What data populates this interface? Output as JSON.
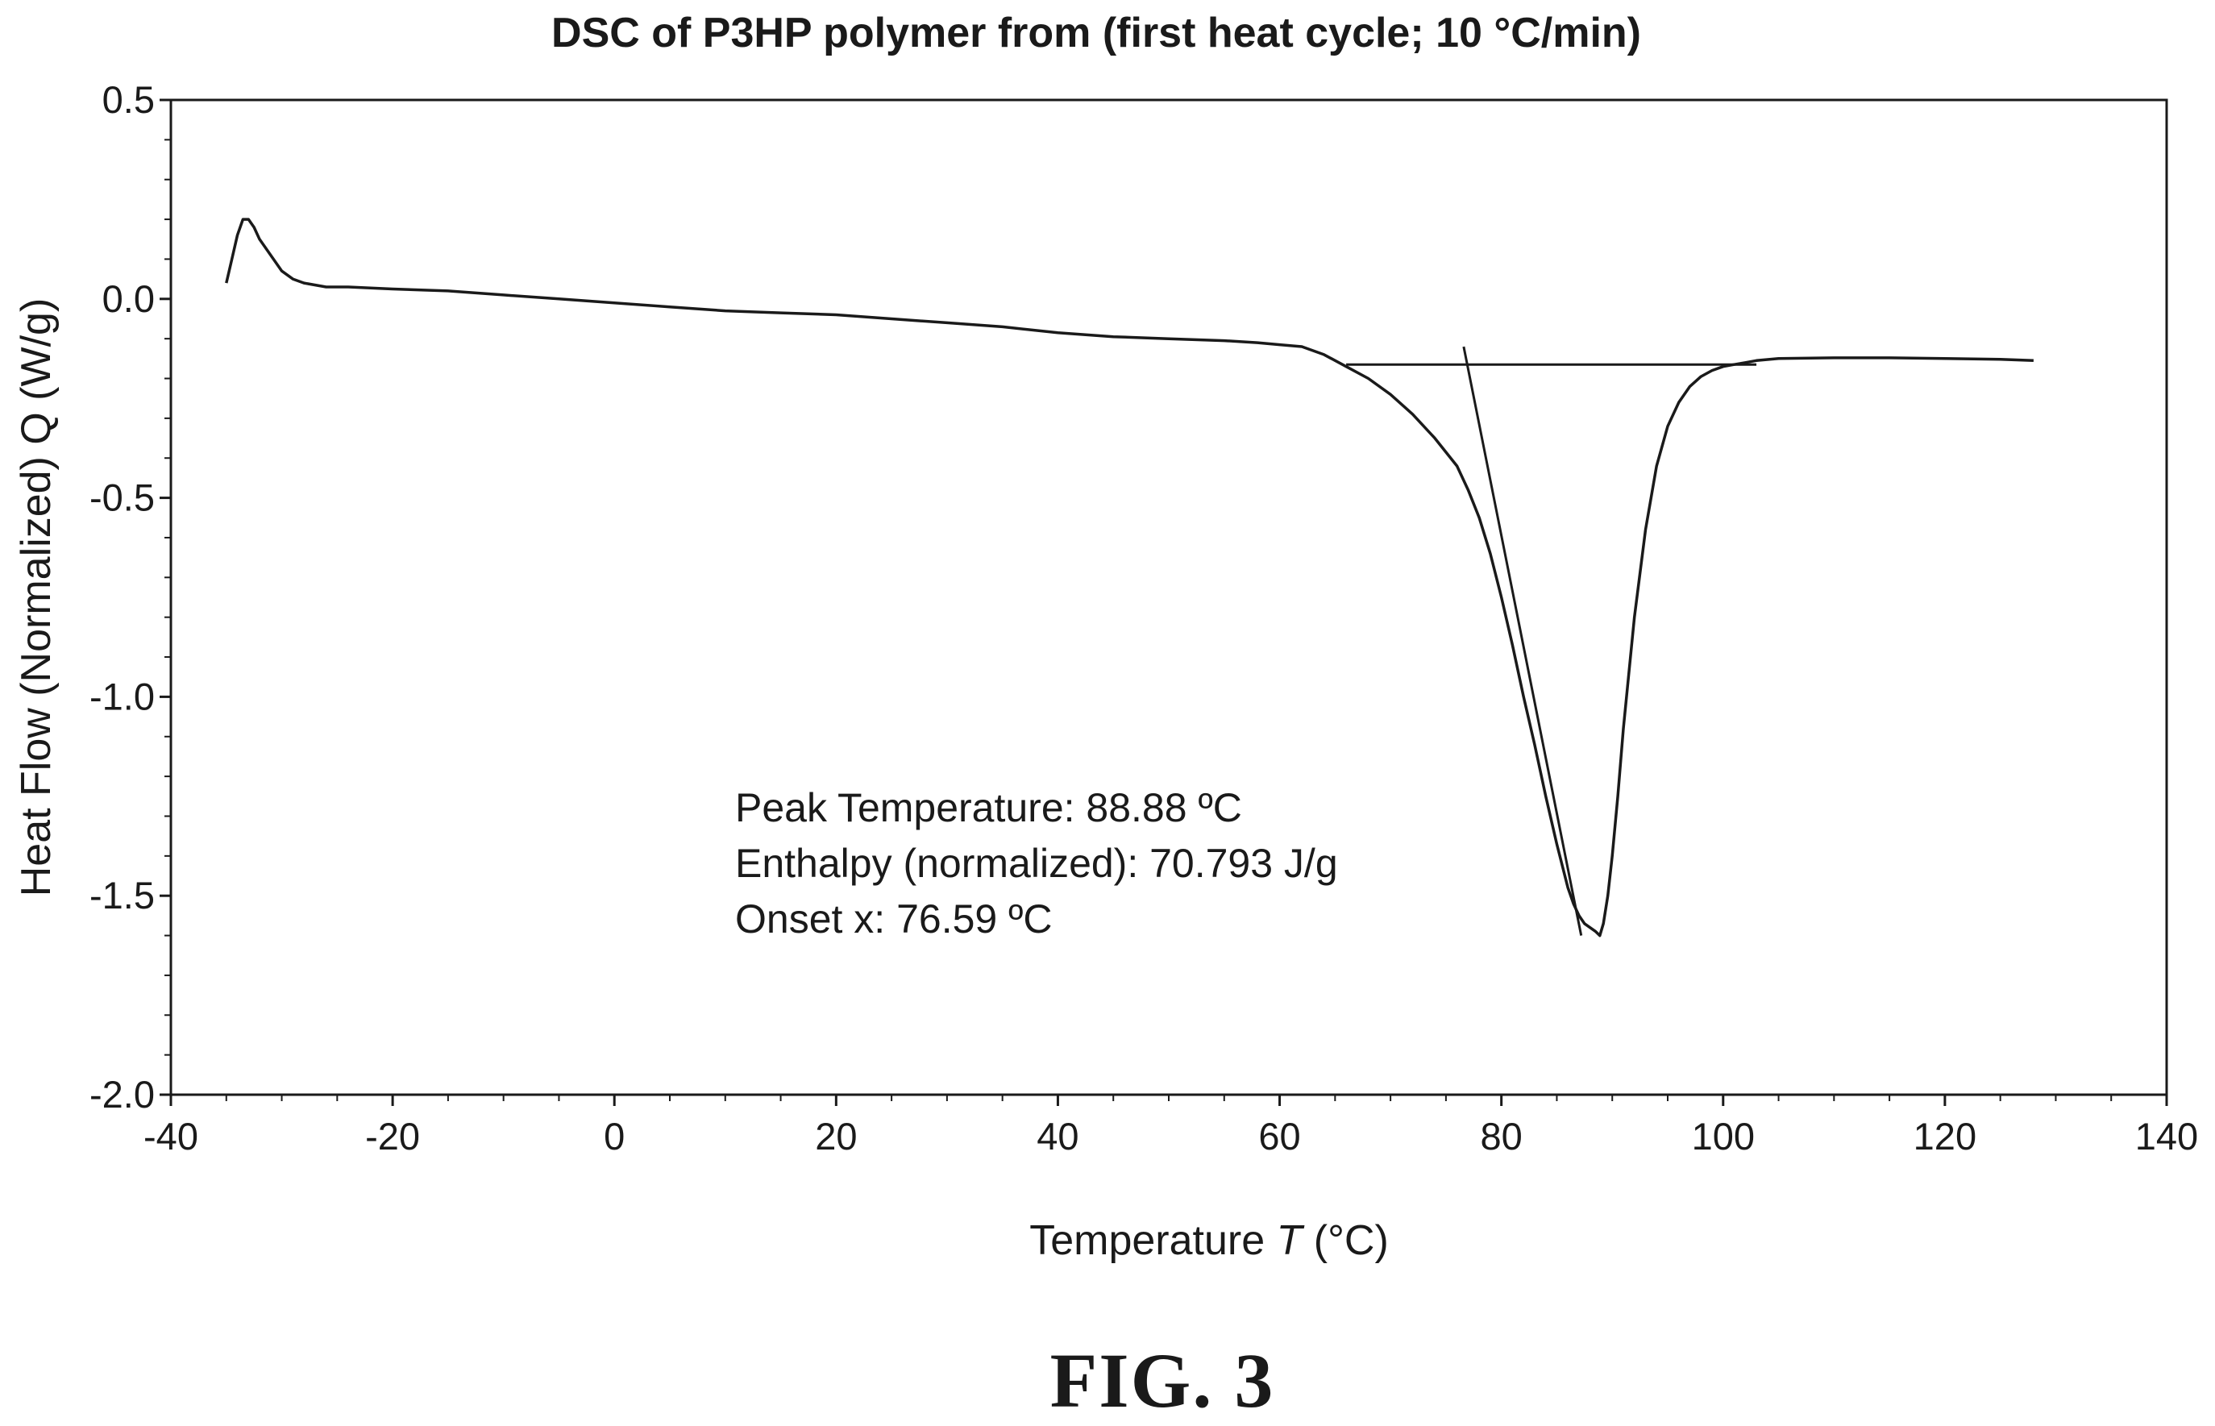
{
  "chart_data": {
    "type": "line",
    "title": "DSC of P3HP polymer from (first heat cycle; 10 °C/min)",
    "xlabel_text": "Temperature ",
    "xlabel_symbol": "T",
    "xlabel_unit": " (°C)",
    "ylabel": "Heat Flow (Normalized) Q (W/g)",
    "xlim": [
      -40,
      140
    ],
    "ylim": [
      -2.0,
      0.5
    ],
    "x_ticks": [
      -40,
      -20,
      0,
      20,
      40,
      60,
      80,
      100,
      120,
      140
    ],
    "y_ticks": [
      0.5,
      0.0,
      -0.5,
      -1.0,
      -1.5,
      -2.0
    ],
    "x_tick_labels": [
      "-40",
      "-20",
      "0",
      "20",
      "40",
      "60",
      "80",
      "100",
      "120",
      "140"
    ],
    "y_tick_labels": [
      "0.5",
      "0.0",
      "-0.5",
      "-1.0",
      "-1.5",
      "-2.0"
    ],
    "grid": false,
    "series": [
      {
        "x": [
          -35,
          -34.5,
          -34,
          -33.5,
          -33,
          -32.5,
          -32,
          -31,
          -30,
          -29,
          -28,
          -26,
          -24,
          -20,
          -15,
          -10,
          -5,
          0,
          5,
          10,
          15,
          20,
          25,
          30,
          35,
          40,
          45,
          50,
          55,
          58,
          60,
          62,
          64,
          66,
          68,
          70,
          72,
          74,
          76,
          77,
          78,
          79,
          80,
          81,
          82,
          83,
          84,
          85,
          86,
          86.5,
          87,
          87.5,
          88,
          88.5,
          88.88,
          89.2,
          89.6,
          90,
          90.5,
          91,
          92,
          93,
          94,
          95,
          96,
          97,
          98,
          99,
          100,
          101,
          102,
          103,
          105,
          110,
          115,
          120,
          125,
          128
        ],
        "y": [
          0.04,
          0.1,
          0.16,
          0.2,
          0.2,
          0.18,
          0.15,
          0.11,
          0.07,
          0.05,
          0.04,
          0.03,
          0.03,
          0.025,
          0.02,
          0.01,
          0.0,
          -0.01,
          -0.02,
          -0.03,
          -0.035,
          -0.04,
          -0.05,
          -0.06,
          -0.07,
          -0.085,
          -0.095,
          -0.1,
          -0.105,
          -0.11,
          -0.115,
          -0.12,
          -0.14,
          -0.17,
          -0.2,
          -0.24,
          -0.29,
          -0.35,
          -0.42,
          -0.48,
          -0.55,
          -0.64,
          -0.75,
          -0.87,
          -1.0,
          -1.12,
          -1.25,
          -1.37,
          -1.48,
          -1.52,
          -1.55,
          -1.57,
          -1.58,
          -1.59,
          -1.6,
          -1.57,
          -1.5,
          -1.4,
          -1.25,
          -1.08,
          -0.8,
          -0.58,
          -0.42,
          -0.32,
          -0.26,
          -0.22,
          -0.195,
          -0.18,
          -0.17,
          -0.165,
          -0.16,
          -0.155,
          -0.15,
          -0.148,
          -0.148,
          -0.15,
          -0.152,
          -0.155
        ]
      }
    ],
    "constructions": [
      {
        "x": [
          66,
          103
        ],
        "y": [
          -0.165,
          -0.165
        ]
      },
      {
        "x": [
          76.6,
          87.2
        ],
        "y": [
          -0.12,
          -1.6
        ]
      }
    ]
  },
  "annotation_lines": [
    "Peak Temperature: 88.88 ºC",
    "Enthalpy (normalized): 70.793 J/g",
    "Onset x: 76.59 ºC"
  ],
  "figure_caption": "FIG. 3"
}
